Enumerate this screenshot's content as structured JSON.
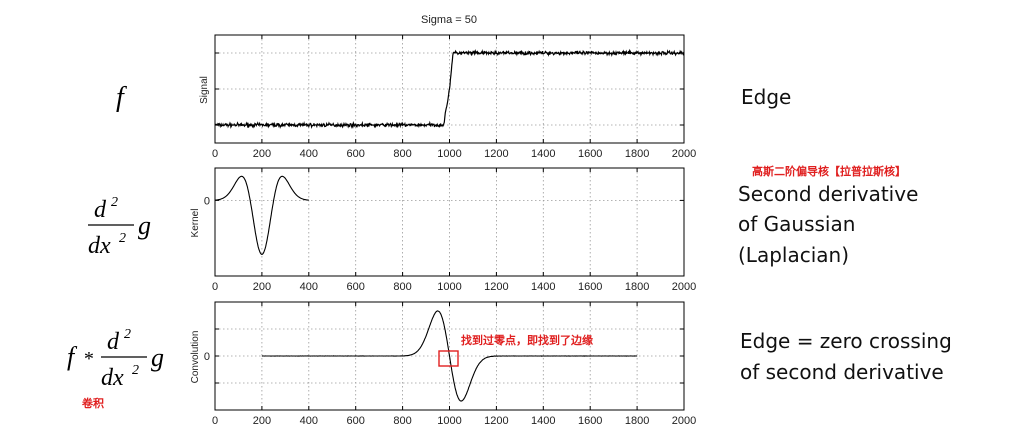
{
  "chart_data": {
    "type": "line",
    "title": "Sigma = 50",
    "x_ticks": [
      0,
      200,
      400,
      600,
      800,
      1000,
      1200,
      1400,
      1600,
      1800,
      2000
    ],
    "xlim": [
      0,
      2000
    ],
    "grid": true,
    "panels": [
      {
        "id": "signal",
        "ylabel": "Signal",
        "ylim": [
          -0.25,
          1.25
        ],
        "y_tick_label": "",
        "series": {
          "x": [
            0,
            975,
            1000,
            1015,
            2000
          ],
          "y": [
            0.0,
            0.0,
            0.5,
            1.0,
            1.0
          ],
          "noise": 0.035
        }
      },
      {
        "id": "kernel",
        "ylabel": "Kernel",
        "ylim": [
          -1.4,
          0.6
        ],
        "y_tick_label": "0",
        "series": {
          "x_start": 0,
          "x_end": 400,
          "center": 200,
          "sigma": 50,
          "shape": "negative-second-derivative-of-gaussian"
        }
      },
      {
        "id": "convolution",
        "ylabel": "Convolution",
        "ylim": [
          -1.2,
          1.2
        ],
        "y_tick_label": "0",
        "series": {
          "x_start": 200,
          "x_end": 1800,
          "center": 1000,
          "sigma": 50,
          "shape": "gaussian-derivative-response",
          "noise": 0.004
        }
      }
    ]
  },
  "formulas": {
    "f": "f",
    "d": "d",
    "power": "2",
    "dx": "dx",
    "g": "g",
    "star": "*"
  },
  "descriptions": {
    "edge": "Edge",
    "second_line1": "Second derivative",
    "second_line2": "of Gaussian",
    "second_line3": "(Laplacian)",
    "conv_line1": "Edge = zero crossing",
    "conv_line2": "of second derivative"
  },
  "annotations": {
    "laplacian_cn": "高斯二阶偏导核【拉普拉斯核】",
    "zero_cross_cn": "找到过零点，即找到了边缘",
    "convolution_cn": "卷积"
  },
  "colors": {
    "annotation": "#e02020",
    "curve": "#000000",
    "grid": "#9a9a9a"
  }
}
